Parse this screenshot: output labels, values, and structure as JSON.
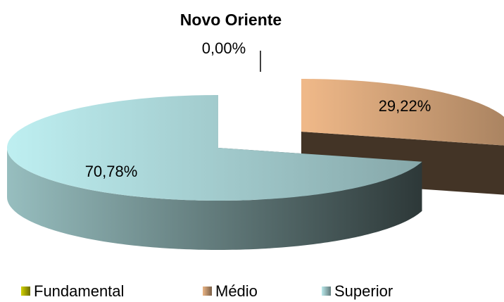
{
  "chart_data": {
    "type": "pie",
    "title": "Novo Oriente",
    "categories": [
      "Fundamental",
      "Médio",
      "Superior"
    ],
    "values": [
      0,
      29.22,
      70.78
    ],
    "value_labels": [
      "0,00%",
      "29,22%",
      "70,78%"
    ],
    "colors": [
      "#c8c800",
      "#e0ad80",
      "#b2dfe1"
    ]
  }
}
